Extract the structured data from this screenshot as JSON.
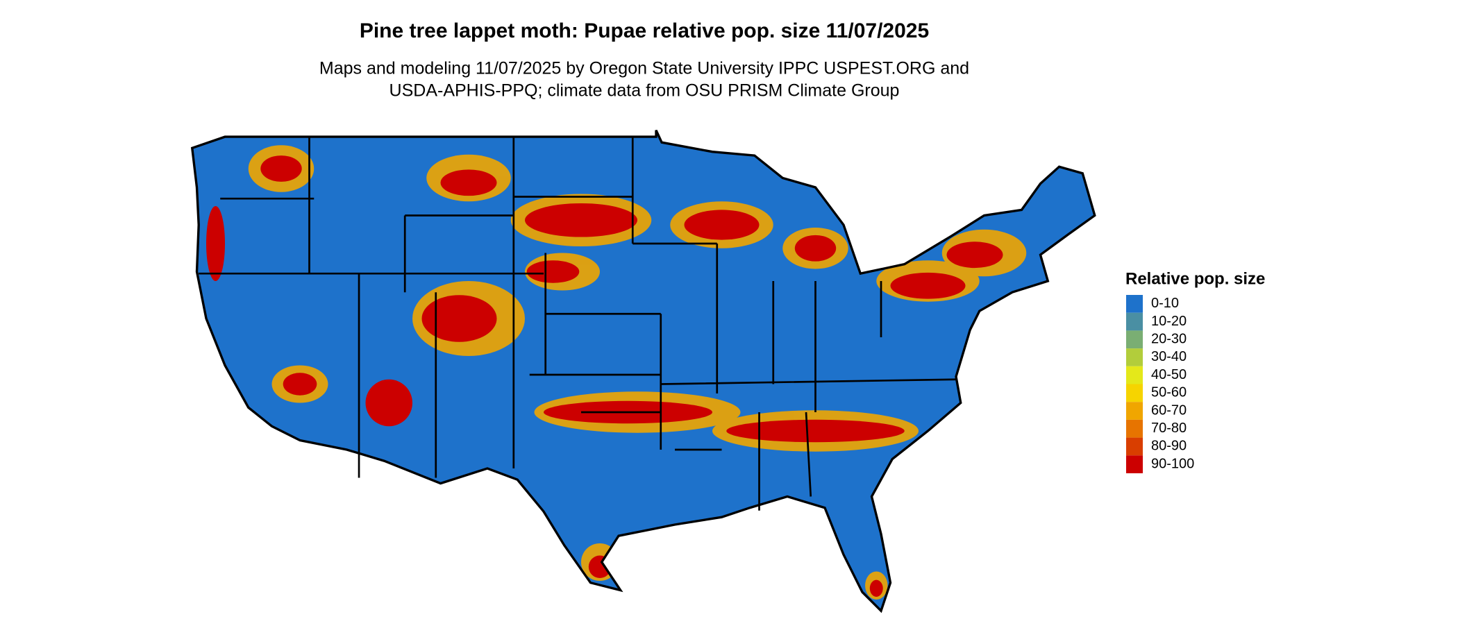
{
  "title": "Pine tree lappet moth: Pupae relative pop. size 11/07/2025",
  "subtitle": [
    "Maps and modeling 11/07/2025 by Oregon State University IPPC USPEST.ORG and",
    "USDA-APHIS-PPQ; climate data from OSU PRISM Climate Group"
  ],
  "legend": {
    "title": "Relative pop. size",
    "items": [
      {
        "label": "0-10",
        "color": "#1e72cb"
      },
      {
        "label": "10-20",
        "color": "#4a8fa3"
      },
      {
        "label": "20-30",
        "color": "#7aae73"
      },
      {
        "label": "30-40",
        "color": "#b2cd3b"
      },
      {
        "label": "40-50",
        "color": "#e4e81a"
      },
      {
        "label": "50-60",
        "color": "#f6d400"
      },
      {
        "label": "60-70",
        "color": "#f0a600"
      },
      {
        "label": "70-80",
        "color": "#e77400"
      },
      {
        "label": "80-90",
        "color": "#d93e00"
      },
      {
        "label": "90-100",
        "color": "#cc0000"
      }
    ]
  }
}
